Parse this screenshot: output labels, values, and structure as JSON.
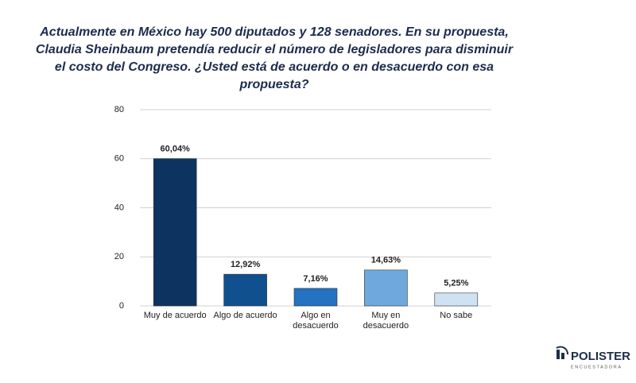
{
  "chart_data": {
    "type": "bar",
    "title": "Actualmente en México hay 500 diputados y 128 senadores. En su propuesta, Claudia Sheinbaum pretendía reducir el número de legisladores para disminuir el costo del Congreso. ¿Usted está de acuerdo o en desacuerdo con esa propuesta?",
    "categories": [
      "Muy de acuerdo",
      "Algo de acuerdo",
      "Algo en desacuerdo",
      "Muy en desacuerdo",
      "No sabe"
    ],
    "values": [
      60.04,
      12.92,
      7.16,
      14.63,
      5.25
    ],
    "value_labels": [
      "60,04%",
      "12,92%",
      "7,16%",
      "14,63%",
      "5,25%"
    ],
    "colors": [
      "#0d3461",
      "#10508f",
      "#2472c0",
      "#6fa8dc",
      "#cfe2f3"
    ],
    "ylim": [
      0,
      80
    ],
    "yticks": [
      0,
      20,
      40,
      60,
      80
    ],
    "grid": true
  },
  "logo": {
    "name": "POLISTER",
    "tagline": "ENCUESTADORA"
  }
}
